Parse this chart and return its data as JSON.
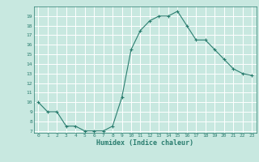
{
  "x": [
    0,
    1,
    2,
    3,
    4,
    5,
    6,
    7,
    8,
    9,
    10,
    11,
    12,
    13,
    14,
    15,
    16,
    17,
    18,
    19,
    20,
    21,
    22,
    23
  ],
  "y": [
    10,
    9,
    9,
    7.5,
    7.5,
    7,
    7,
    7,
    7.5,
    10.5,
    15.5,
    17.5,
    18.5,
    19,
    19,
    19.5,
    18,
    16.5,
    16.5,
    15.5,
    14.5,
    13.5,
    13,
    12.8
  ],
  "xlabel": "Humidex (Indice chaleur)",
  "ylabel": "",
  "xlim": [
    -0.5,
    23.5
  ],
  "ylim": [
    6.8,
    20.0
  ],
  "yticks": [
    7,
    8,
    9,
    10,
    11,
    12,
    13,
    14,
    15,
    16,
    17,
    18,
    19
  ],
  "xticks": [
    0,
    1,
    2,
    3,
    4,
    5,
    6,
    7,
    8,
    9,
    10,
    11,
    12,
    13,
    14,
    15,
    16,
    17,
    18,
    19,
    20,
    21,
    22,
    23
  ],
  "line_color": "#2a7d6f",
  "marker_color": "#2a7d6f",
  "bg_color": "#c8e8e0",
  "grid_color": "#ffffff",
  "label_color": "#2a7d6f",
  "title_color": "#2a7d6f",
  "tick_color": "#2a7d6f"
}
